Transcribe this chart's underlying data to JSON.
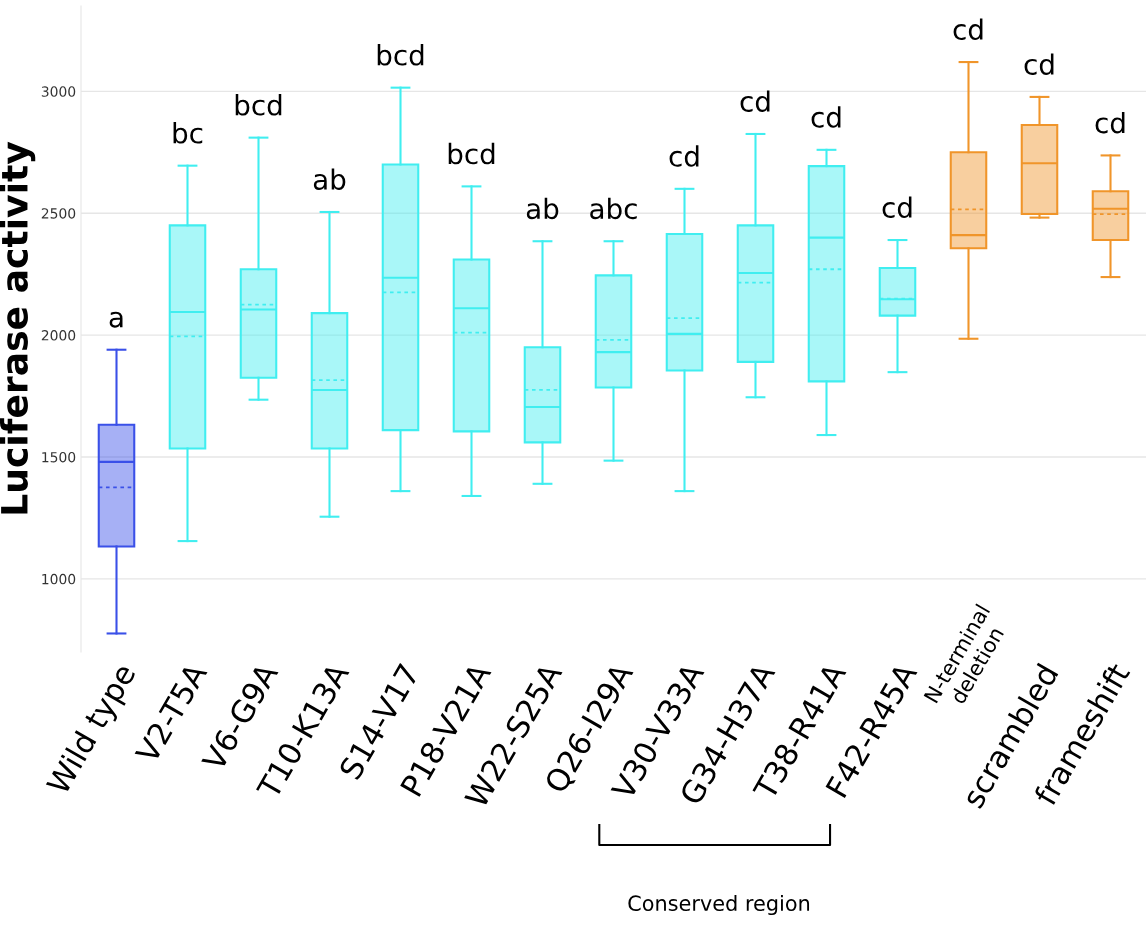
{
  "chart_data": {
    "type": "box",
    "ylabel": "Luciferase activity",
    "categories": [
      "Wild type",
      "V2-T5A",
      "V6-G9A",
      "T10-K13A",
      "S14-V17",
      "P18-V21A",
      "W22-S25A",
      "Q26-I29A",
      "V30-V33A",
      "G34-H37A",
      "T38-R41A",
      "F42-R45A",
      "N-terminal deletion",
      "scrambled",
      "frameshift"
    ],
    "colors": [
      "#3a50e8",
      "#40eef0",
      "#40eef0",
      "#40eef0",
      "#40eef0",
      "#40eef0",
      "#40eef0",
      "#40eef0",
      "#40eef0",
      "#40eef0",
      "#40eef0",
      "#40eef0",
      "#f0952a",
      "#f0952a",
      "#f0952a"
    ],
    "boxes": [
      {
        "low": 776,
        "q1": 1133,
        "median": 1480,
        "q3": 1632,
        "high": 1940,
        "mean": 1375
      },
      {
        "low": 1155,
        "q1": 1535,
        "median": 2095,
        "q3": 2450,
        "high": 2695,
        "mean": 1995
      },
      {
        "low": 1735,
        "q1": 1825,
        "median": 2105,
        "q3": 2270,
        "high": 2810,
        "mean": 2125
      },
      {
        "low": 1255,
        "q1": 1535,
        "median": 1775,
        "q3": 2090,
        "high": 2505,
        "mean": 1815
      },
      {
        "low": 1360,
        "q1": 1610,
        "median": 2235,
        "q3": 2700,
        "high": 3015,
        "mean": 2175
      },
      {
        "low": 1340,
        "q1": 1605,
        "median": 2110,
        "q3": 2310,
        "high": 2610,
        "mean": 2010
      },
      {
        "low": 1390,
        "q1": 1560,
        "median": 1705,
        "q3": 1950,
        "high": 2385,
        "mean": 1775
      },
      {
        "low": 1485,
        "q1": 1785,
        "median": 1930,
        "q3": 2245,
        "high": 2385,
        "mean": 1980
      },
      {
        "low": 1360,
        "q1": 1855,
        "median": 2005,
        "q3": 2415,
        "high": 2600,
        "mean": 2070
      },
      {
        "low": 1745,
        "q1": 1890,
        "median": 2255,
        "q3": 2450,
        "high": 2825,
        "mean": 2215
      },
      {
        "low": 1590,
        "q1": 1810,
        "median": 2400,
        "q3": 2693,
        "high": 2760,
        "mean": 2270
      },
      {
        "low": 1848,
        "q1": 2080,
        "median": 2147,
        "q3": 2275,
        "high": 2390,
        "mean": 2150
      },
      {
        "low": 1985,
        "q1": 2356,
        "median": 2410,
        "q3": 2750,
        "high": 3120,
        "mean": 2516
      },
      {
        "low": 2482,
        "q1": 2497,
        "median": 2705,
        "q3": 2862,
        "high": 2977
      },
      {
        "low": 2238,
        "q1": 2390,
        "median": 2518,
        "q3": 2590,
        "high": 2737,
        "mean": 2496
      }
    ],
    "ylim": [
      700,
      3350
    ],
    "yticks": [
      1000,
      1500,
      2000,
      2500,
      3000
    ],
    "grid": "y",
    "annotations": [
      "a",
      "bc",
      "bcd",
      "ab",
      "bcd",
      "bcd",
      "ab",
      "abc",
      "cd",
      "cd",
      "cd",
      "cd",
      "cd",
      "cd",
      "cd",
      "Conserved region"
    ]
  }
}
